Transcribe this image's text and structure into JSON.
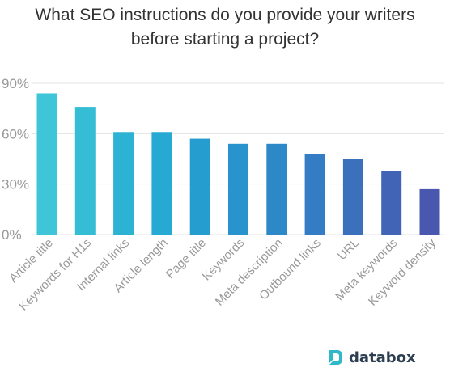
{
  "chart_data": {
    "type": "bar",
    "title_line1": "What SEO instructions do you provide your writers",
    "title_line2": "before starting a project?",
    "categories": [
      "Article title",
      "Keywords for H1s",
      "Internal links",
      "Article length",
      "Page title",
      "Keywords",
      "Meta description",
      "Outbound links",
      "URL",
      "Meta keywords",
      "Keyword density"
    ],
    "values": [
      84,
      76,
      61,
      61,
      57,
      54,
      54,
      48,
      45,
      38,
      27
    ],
    "yticks": [
      "0%",
      "30%",
      "60%",
      "90%"
    ],
    "ytick_values": [
      0,
      30,
      60,
      90
    ],
    "ylim": [
      0,
      90
    ],
    "grid": true,
    "colors": [
      "#3ec6d8",
      "#35bdd6",
      "#2cb3d4",
      "#26a9d2",
      "#259ecf",
      "#2893cc",
      "#2d88c8",
      "#347cc3",
      "#3b70bd",
      "#4264b6",
      "#4958ae"
    ]
  },
  "brand": {
    "name": "databox",
    "icon": "databox-logo-icon",
    "color": "#2fb8c8"
  }
}
